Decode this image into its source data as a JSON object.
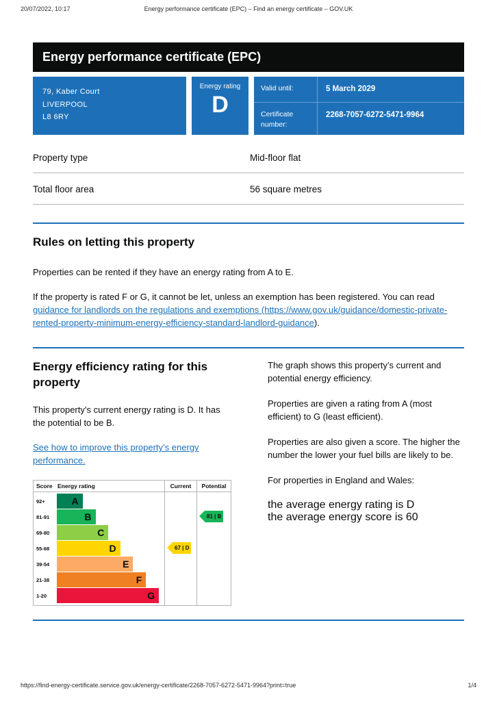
{
  "print_header": {
    "datetime": "20/07/2022, 10:17",
    "document_title": "Energy performance certificate (EPC) – Find an energy certificate – GOV.UK"
  },
  "banner": {
    "title": "Energy performance certificate (EPC)"
  },
  "summary": {
    "address_lines": [
      "79, Kaber Court",
      "LIVERPOOL",
      "L8 6RY"
    ],
    "energy_rating_label": "Energy rating",
    "energy_rating": "D",
    "valid_until_label": "Valid until:",
    "valid_until_value": "5 March 2029",
    "certificate_number_label": "Certificate number:",
    "certificate_number_value": "2268-7057-6272-5471-9964"
  },
  "property_facts": [
    {
      "label": "Property type",
      "value": "Mid-floor flat"
    },
    {
      "label": "Total floor area",
      "value": "56 square metres"
    }
  ],
  "rules_section": {
    "heading": "Rules on letting this property",
    "paragraph_1": "Properties can be rented if they have an energy rating from A to E.",
    "paragraph_2_prefix": "If the property is rated F or G, it cannot be let, unless an exemption has been registered. You can read ",
    "paragraph_2_link": "guidance for landlords on the regulations and exemptions (https://www.gov.uk/guidance/domestic-private-rented-property-minimum-energy-efficiency-standard-landlord-guidance",
    "paragraph_2_suffix": ")."
  },
  "rating_section": {
    "heading": "Energy efficiency rating for this property",
    "paragraph_1": "This property’s current energy rating is D. It has the potential to be B.",
    "improve_link": "See how to improve this property’s energy performance.",
    "explanation_paragraphs": [
      "The graph shows this property’s current and potential energy efficiency.",
      "Properties are given a rating from A (most efficient) to G (least efficient).",
      "Properties are also given a score. The higher the number the lower your fuel bills are likely to be.",
      "For properties in England and Wales:"
    ],
    "averages_line_1": "the average energy rating is D",
    "averages_line_2": "the average energy score is 60"
  },
  "chart_data": {
    "type": "bar",
    "title": "Energy efficiency rating chart",
    "headers": [
      "Score",
      "Energy rating",
      "Current",
      "Potential"
    ],
    "bands": [
      {
        "score_range": "92+",
        "letter": "A",
        "color": "#008054",
        "width_pct": 24
      },
      {
        "score_range": "81-91",
        "letter": "B",
        "color": "#19b459",
        "width_pct": 36
      },
      {
        "score_range": "69-80",
        "letter": "C",
        "color": "#8dce46",
        "width_pct": 48
      },
      {
        "score_range": "55-68",
        "letter": "D",
        "color": "#ffd500",
        "width_pct": 59
      },
      {
        "score_range": "39-54",
        "letter": "E",
        "color": "#fcaa65",
        "width_pct": 71
      },
      {
        "score_range": "21-38",
        "letter": "F",
        "color": "#ef8023",
        "width_pct": 83
      },
      {
        "score_range": "1-20",
        "letter": "G",
        "color": "#e9153b",
        "width_pct": 95
      }
    ],
    "current": {
      "score": 67,
      "letter": "D",
      "label": "67 | D",
      "band_index": 3
    },
    "potential": {
      "score": 81,
      "letter": "B",
      "label": "81 | B",
      "band_index": 1
    }
  },
  "print_footer": {
    "url": "https://find-energy-certificate.service.gov.uk/energy-certificate/2268-7057-6272-5471-9964?print=true",
    "page_indicator": "1/4"
  },
  "colors": {
    "govuk_blue": "#1d70b8",
    "banner_black": "#0b0c0c",
    "border_gray": "#b1b4b6"
  }
}
